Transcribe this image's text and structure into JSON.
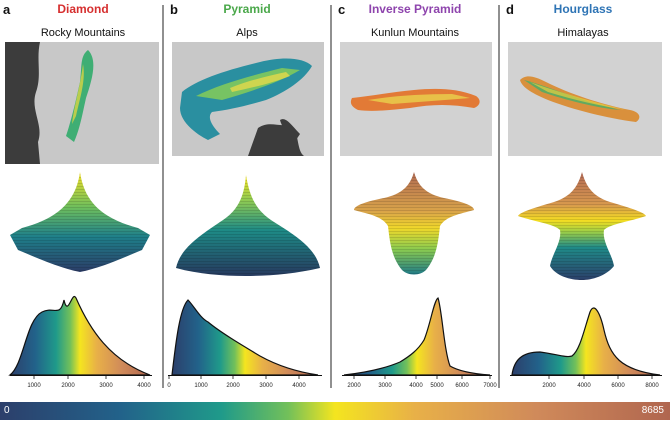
{
  "colorbar": {
    "min_label": "0",
    "max_label": "8685"
  },
  "panels": [
    {
      "letter": "a",
      "type": "Diamond",
      "type_color": "#d62f2f",
      "mountain": "Rocky Mountains",
      "xticks": [
        "1000",
        "2000",
        "3000",
        "4000"
      ]
    },
    {
      "letter": "b",
      "type": "Pyramid",
      "type_color": "#4aa84a",
      "mountain": "Alps",
      "xticks": [
        "0",
        "1000",
        "2000",
        "3000",
        "4000"
      ]
    },
    {
      "letter": "c",
      "type": "Inverse Pyramid",
      "type_color": "#8e44ad",
      "mountain": "Kunlun Mountains",
      "xticks": [
        "2000",
        "3000",
        "4000",
        "5000",
        "6000",
        "7000"
      ]
    },
    {
      "letter": "d",
      "type": "Hourglass",
      "type_color": "#2e74b5",
      "mountain": "Himalayas",
      "xticks": [
        "2000",
        "4000",
        "6000",
        "8000"
      ]
    }
  ]
}
